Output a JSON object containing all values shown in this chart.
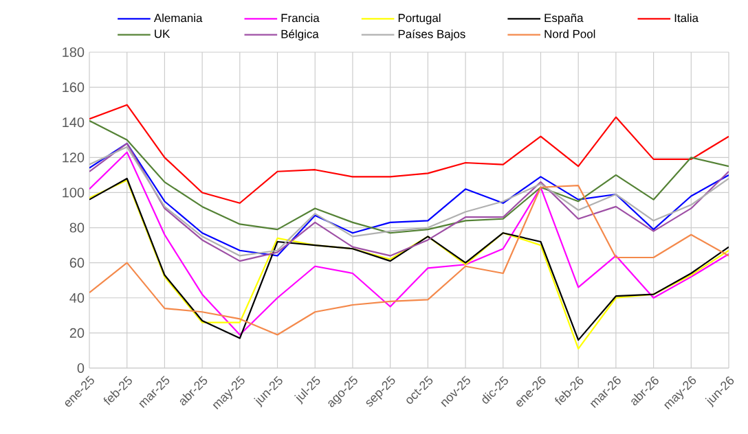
{
  "chart_data": {
    "type": "line",
    "categories": [
      "ene-25",
      "feb-25",
      "mar-25",
      "abr-25",
      "may-25",
      "jun-25",
      "jul-25",
      "ago-25",
      "sep-25",
      "oct-25",
      "nov-25",
      "dic-25",
      "ene-26",
      "feb-26",
      "mar-26",
      "abr-26",
      "may-26",
      "jun-26"
    ],
    "series": [
      {
        "name": "Alemania",
        "color": "#0000ff",
        "values": [
          114,
          128,
          95,
          77,
          67,
          64,
          87,
          77,
          83,
          84,
          102,
          94,
          109,
          96,
          99,
          79,
          98,
          110
        ]
      },
      {
        "name": "Francia",
        "color": "#ff00ff",
        "values": [
          102,
          123,
          76,
          42,
          19,
          40,
          58,
          54,
          35,
          57,
          59,
          68,
          103,
          46,
          64,
          40,
          52,
          65
        ]
      },
      {
        "name": "Portugal",
        "color": "#ffff00",
        "values": [
          97,
          107,
          52,
          26,
          26,
          74,
          70,
          68,
          62,
          75,
          59,
          77,
          70,
          11,
          40,
          42,
          53,
          67
        ]
      },
      {
        "name": "España",
        "color": "#000000",
        "values": [
          96,
          108,
          53,
          27,
          17,
          72,
          70,
          68,
          61,
          75,
          60,
          77,
          72,
          16,
          41,
          42,
          54,
          69
        ]
      },
      {
        "name": "Italia",
        "color": "#ff0000",
        "values": [
          142,
          150,
          120,
          100,
          94,
          112,
          113,
          109,
          109,
          111,
          117,
          116,
          132,
          115,
          143,
          119,
          119,
          132
        ]
      },
      {
        "name": "UK",
        "color": "#548235",
        "values": [
          141,
          130,
          106,
          92,
          82,
          79,
          91,
          83,
          77,
          79,
          84,
          85,
          103,
          95,
          110,
          96,
          120,
          115
        ]
      },
      {
        "name": "Bélgica",
        "color": "#9e4fa5",
        "values": [
          112,
          128,
          91,
          73,
          61,
          66,
          83,
          69,
          64,
          73,
          86,
          86,
          106,
          85,
          92,
          78,
          91,
          112
        ]
      },
      {
        "name": "Países Bajos",
        "color": "#b0b0b0",
        "values": [
          116,
          126,
          92,
          75,
          64,
          67,
          88,
          75,
          78,
          80,
          89,
          95,
          105,
          90,
          99,
          84,
          93,
          108
        ]
      },
      {
        "name": "Nord Pool",
        "color": "#f4894b",
        "values": [
          43,
          60,
          34,
          32,
          28,
          19,
          32,
          36,
          38,
          39,
          58,
          54,
          103,
          104,
          63,
          63,
          76,
          64
        ]
      }
    ],
    "ylim": [
      0,
      180
    ],
    "yticks": [
      0,
      20,
      40,
      60,
      80,
      100,
      120,
      140,
      160,
      180
    ],
    "grid": true,
    "legend": "top"
  }
}
